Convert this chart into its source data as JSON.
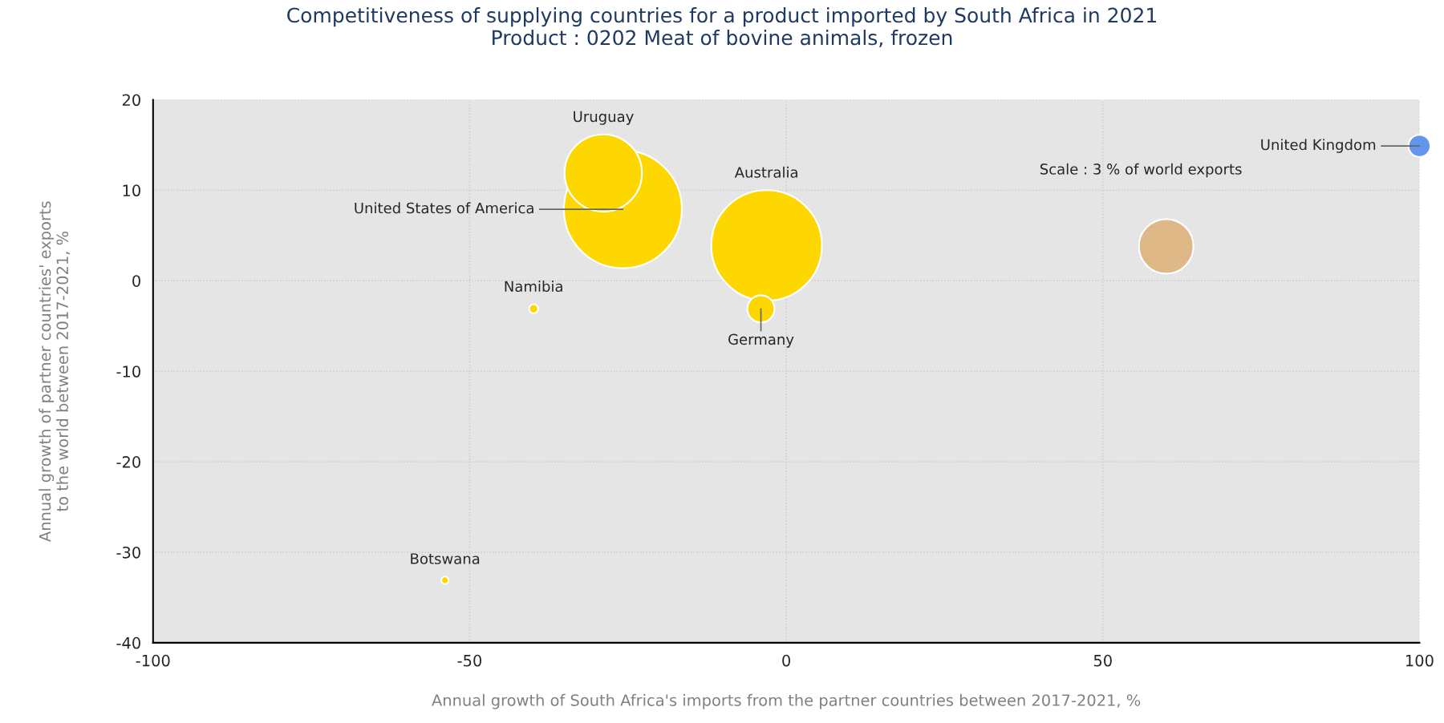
{
  "chart_data": {
    "type": "bubble",
    "title": "Competitiveness of supplying countries for a product imported by South Africa in 2021\nProduct : 0202 Meat of bovine animals, frozen",
    "xlabel": "Annual growth of South Africa's imports from the partner countries between 2017-2021, %",
    "ylabel": "Annual growth of partner countries' exports\nto the world between 2017-2021, %",
    "series": [
      {
        "name": "United States of America",
        "color": "#ffd700",
        "x": [
          -25.8
        ],
        "values": [
          7.9
        ],
        "sizes": [
          1
        ]
      },
      {
        "name": "Uruguay",
        "color": "#ffd700",
        "x": [
          -28.9
        ],
        "values": [
          11.9
        ],
        "sizes": [
          0.43
        ]
      },
      {
        "name": "Australia",
        "color": "#ffd700",
        "x": [
          -3.1
        ],
        "values": [
          3.9
        ],
        "sizes": [
          0.88
        ]
      },
      {
        "name": "Germany",
        "color": "#ffd700",
        "x": [
          -4.0
        ],
        "values": [
          -3.1
        ],
        "sizes": [
          0.053
        ]
      },
      {
        "name": "Namibia",
        "color": "#ffd700",
        "x": [
          -39.9
        ],
        "values": [
          -3.1
        ],
        "sizes": [
          0.006
        ]
      },
      {
        "name": "Botswana",
        "color": "#ffd700",
        "x": [
          -53.9
        ],
        "values": [
          -33.1
        ],
        "sizes": [
          0.004
        ]
      },
      {
        "name": "United Kingdom",
        "color": "#6495ed",
        "x": [
          100
        ],
        "values": [
          14.9
        ],
        "sizes": [
          0.035
        ]
      }
    ],
    "annotations": [
      "Scale : 3 % of world exports"
    ],
    "xlim": [
      -100,
      100
    ],
    "xticks": [
      -100,
      -50,
      0,
      50,
      100
    ],
    "ylim": [
      -40,
      20
    ],
    "yticks": [
      -40,
      -30,
      -20,
      -10,
      0,
      10,
      20
    ],
    "grid": true
  }
}
